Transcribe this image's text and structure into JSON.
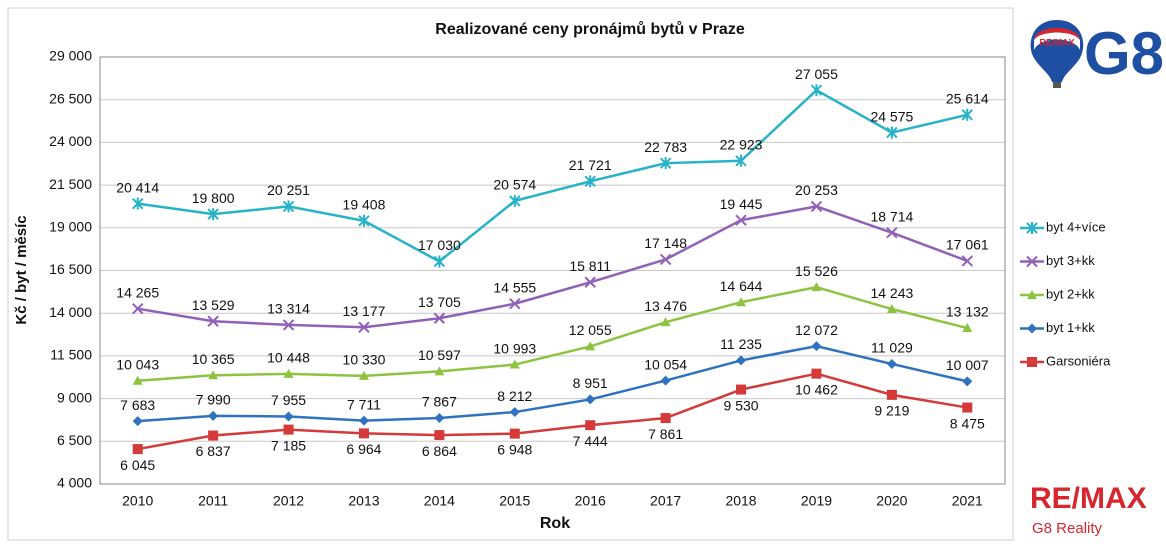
{
  "chart_data": {
    "type": "line",
    "title": "Realizované ceny pronájmů bytů v Praze",
    "x_label": "Rok",
    "y_label": "Kč / byt / měsíc",
    "categories": [
      "2010",
      "2011",
      "2012",
      "2013",
      "2014",
      "2015",
      "2016",
      "2017",
      "2018",
      "2019",
      "2020",
      "2021"
    ],
    "series": [
      {
        "name": "byt 4+více",
        "color": "#26b3c9",
        "marker": "asterisk",
        "values": [
          20414,
          19800,
          20251,
          19408,
          17030,
          20574,
          21721,
          22783,
          22923,
          27055,
          24575,
          25614
        ],
        "value_labels": [
          "20 414",
          "19 800",
          "20 251",
          "19 408",
          "17 030",
          "20 574",
          "21 721",
          "22 783",
          "22 923",
          "27 055",
          "24 575",
          "25 614"
        ]
      },
      {
        "name": "byt 3+kk",
        "color": "#9160b8",
        "marker": "cross",
        "values": [
          14265,
          13529,
          13314,
          13177,
          13705,
          14555,
          15811,
          17148,
          19445,
          20253,
          18714,
          17061
        ],
        "value_labels": [
          "14 265",
          "13 529",
          "13 314",
          "13 177",
          "13 705",
          "14 555",
          "15 811",
          "17 148",
          "19 445",
          "20 253",
          "18 714",
          "17 061"
        ]
      },
      {
        "name": "byt 2+kk",
        "color": "#8cc43f",
        "marker": "triangle",
        "values": [
          10043,
          10365,
          10448,
          10330,
          10597,
          10993,
          12055,
          13476,
          14644,
          15526,
          14243,
          13132
        ],
        "value_labels": [
          "10 043",
          "10 365",
          "10 448",
          "10 330",
          "10 597",
          "10 993",
          "12 055",
          "13 476",
          "14 644",
          "15 526",
          "14 243",
          "13 132"
        ]
      },
      {
        "name": "byt 1+kk",
        "color": "#2f72c0",
        "marker": "diamond",
        "values": [
          7683,
          7990,
          7955,
          7711,
          7867,
          8212,
          8951,
          10054,
          11235,
          12072,
          11029,
          10007
        ],
        "value_labels": [
          "7 683",
          "7 990",
          "7 955",
          "7 711",
          "7 867",
          "8 212",
          "8 951",
          "10 054",
          "11 235",
          "12 072",
          "11 029",
          "10 007"
        ]
      },
      {
        "name": "Garsoniéra",
        "color": "#d43a3a",
        "marker": "square",
        "values": [
          6045,
          6837,
          7185,
          6964,
          6864,
          6948,
          7444,
          7861,
          9530,
          10462,
          9219,
          8475
        ],
        "value_labels": [
          "6 045",
          "6 837",
          "7 185",
          "6 964",
          "6 864",
          "6 948",
          "7 444",
          "7 861",
          "9 530",
          "10 462",
          "9 219",
          "8 475"
        ]
      }
    ],
    "ylim": [
      4000,
      29000
    ],
    "yticks": [
      {
        "value": 4000,
        "label": "4 000"
      },
      {
        "value": 6500,
        "label": "6 500"
      },
      {
        "value": 9000,
        "label": "9 000"
      },
      {
        "value": 11500,
        "label": "11 500"
      },
      {
        "value": 14000,
        "label": "14 000"
      },
      {
        "value": 16500,
        "label": "16 500"
      },
      {
        "value": 19000,
        "label": "19 000"
      },
      {
        "value": 21500,
        "label": "21 500"
      },
      {
        "value": 24000,
        "label": "24 000"
      },
      {
        "value": 26500,
        "label": "26 500"
      },
      {
        "value": 29000,
        "label": "29 000"
      }
    ],
    "grid": true,
    "legend": "right"
  },
  "logos": {
    "balloon_text": "RE/MAX",
    "top_text": "G8",
    "bottom_brand": "RE/MAX",
    "bottom_text": "G8 Reality"
  }
}
